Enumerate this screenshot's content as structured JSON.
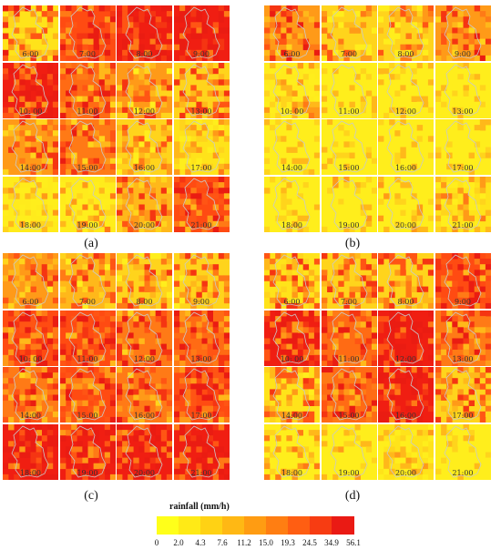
{
  "panels": [
    {
      "label": "(a)",
      "tiles": [
        {
          "time": "6:00",
          "base": "#ffe31a",
          "hot": 0.55,
          "seed": 3
        },
        {
          "time": "7:00",
          "base": "#ff4b12",
          "hot": 0.75,
          "seed": 5
        },
        {
          "time": "8:00",
          "base": "#f01e12",
          "hot": 0.9,
          "seed": 7
        },
        {
          "time": "9:00",
          "base": "#f01e12",
          "hot": 0.92,
          "seed": 11
        },
        {
          "time": "10: 00",
          "base": "#f01e12",
          "hot": 0.8,
          "seed": 13
        },
        {
          "time": "11:00",
          "base": "#ff6b14",
          "hot": 0.6,
          "seed": 17
        },
        {
          "time": "12:00",
          "base": "#ff9a18",
          "hot": 0.45,
          "seed": 19
        },
        {
          "time": "13:00",
          "base": "#ffd41c",
          "hot": 0.55,
          "seed": 23
        },
        {
          "time": "14:00",
          "base": "#ff9a18",
          "hot": 0.5,
          "seed": 29
        },
        {
          "time": "15:00",
          "base": "#ff7a16",
          "hot": 0.55,
          "seed": 31
        },
        {
          "time": "16:00",
          "base": "#ffd41c",
          "hot": 0.35,
          "seed": 37
        },
        {
          "time": "17:00",
          "base": "#ffe31a",
          "hot": 0.2,
          "seed": 41
        },
        {
          "time": "18:00",
          "base": "#ffeb1c",
          "hot": 0.12,
          "seed": 43
        },
        {
          "time": "19:00",
          "base": "#ffeb1c",
          "hot": 0.15,
          "seed": 47
        },
        {
          "time": "20:00",
          "base": "#ffb81a",
          "hot": 0.5,
          "seed": 53
        },
        {
          "time": "21:00",
          "base": "#ff4b12",
          "hot": 0.7,
          "seed": 59
        }
      ]
    },
    {
      "label": "(b)",
      "tiles": [
        {
          "time": "6:00",
          "base": "#ff9a18",
          "hot": 0.55,
          "seed": 61
        },
        {
          "time": "7:00",
          "base": "#ffd41c",
          "hot": 0.35,
          "seed": 67
        },
        {
          "time": "8:00",
          "base": "#ffd41c",
          "hot": 0.3,
          "seed": 71
        },
        {
          "time": "9:00",
          "base": "#ff9a18",
          "hot": 0.55,
          "seed": 73
        },
        {
          "time": "10: 00",
          "base": "#ffeb1c",
          "hot": 0.15,
          "seed": 79
        },
        {
          "time": "11:00",
          "base": "#ffee1c",
          "hot": 0.0,
          "seed": 83
        },
        {
          "time": "12:00",
          "base": "#ffee1c",
          "hot": 0.0,
          "seed": 89
        },
        {
          "time": "13:00",
          "base": "#ffee1c",
          "hot": 0.0,
          "seed": 97
        },
        {
          "time": "14:00",
          "base": "#ffee1c",
          "hot": 0.0,
          "seed": 101
        },
        {
          "time": "15:00",
          "base": "#ffee1c",
          "hot": 0.0,
          "seed": 103
        },
        {
          "time": "16:00",
          "base": "#ffee1c",
          "hot": 0.0,
          "seed": 107
        },
        {
          "time": "17:00",
          "base": "#ffee1c",
          "hot": 0.0,
          "seed": 109
        },
        {
          "time": "18:00",
          "base": "#ffee1c",
          "hot": 0.0,
          "seed": 113
        },
        {
          "time": "19:00",
          "base": "#ffee1c",
          "hot": 0.03,
          "seed": 127
        },
        {
          "time": "20:00",
          "base": "#ffee1c",
          "hot": 0.12,
          "seed": 131
        },
        {
          "time": "21:00",
          "base": "#ffe31a",
          "hot": 0.25,
          "seed": 137
        }
      ]
    },
    {
      "label": "(c)",
      "tiles": [
        {
          "time": "6:00",
          "base": "#ff9a18",
          "hot": 0.45,
          "seed": 139
        },
        {
          "time": "7:00",
          "base": "#ffb81a",
          "hot": 0.45,
          "seed": 149
        },
        {
          "time": "8:00",
          "base": "#ffd41c",
          "hot": 0.45,
          "seed": 151
        },
        {
          "time": "9:00",
          "base": "#ffd41c",
          "hot": 0.45,
          "seed": 157
        },
        {
          "time": "10: 00",
          "base": "#ff4b12",
          "hot": 0.65,
          "seed": 163
        },
        {
          "time": "11:00",
          "base": "#ff4b12",
          "hot": 0.7,
          "seed": 167
        },
        {
          "time": "12:00",
          "base": "#ff7a16",
          "hot": 0.6,
          "seed": 173
        },
        {
          "time": "13:00",
          "base": "#ff6b14",
          "hot": 0.65,
          "seed": 179
        },
        {
          "time": "14:00",
          "base": "#ff7a16",
          "hot": 0.6,
          "seed": 181
        },
        {
          "time": "15:00",
          "base": "#ff4b12",
          "hot": 0.65,
          "seed": 191
        },
        {
          "time": "16:00",
          "base": "#ff7a16",
          "hot": 0.6,
          "seed": 193
        },
        {
          "time": "17:00",
          "base": "#ff4b12",
          "hot": 0.7,
          "seed": 197
        },
        {
          "time": "18:00",
          "base": "#f01e12",
          "hot": 0.75,
          "seed": 199
        },
        {
          "time": "19:00",
          "base": "#f01e12",
          "hot": 0.75,
          "seed": 211
        },
        {
          "time": "20:00",
          "base": "#f01e12",
          "hot": 0.85,
          "seed": 223
        },
        {
          "time": "21:00",
          "base": "#f01e12",
          "hot": 0.85,
          "seed": 227
        }
      ]
    },
    {
      "label": "(d)",
      "tiles": [
        {
          "time": "6:00",
          "base": "#ffe31a",
          "hot": 0.5,
          "seed": 229
        },
        {
          "time": "7:00",
          "base": "#ffd41c",
          "hot": 0.5,
          "seed": 233
        },
        {
          "time": "8:00",
          "base": "#ffd41c",
          "hot": 0.5,
          "seed": 239
        },
        {
          "time": "9:00",
          "base": "#ff4b12",
          "hot": 0.7,
          "seed": 241
        },
        {
          "time": "10: 00",
          "base": "#f01e12",
          "hot": 0.75,
          "seed": 251
        },
        {
          "time": "11:00",
          "base": "#ff6b14",
          "hot": 0.65,
          "seed": 257
        },
        {
          "time": "12:00",
          "base": "#f01e12",
          "hot": 0.95,
          "seed": 263
        },
        {
          "time": "13:00",
          "base": "#ff7a16",
          "hot": 0.6,
          "seed": 269
        },
        {
          "time": "14:00",
          "base": "#ffe31a",
          "hot": 0.45,
          "seed": 271
        },
        {
          "time": "15:00",
          "base": "#ff6b14",
          "hot": 0.65,
          "seed": 277
        },
        {
          "time": "16:00",
          "base": "#f01e12",
          "hot": 0.85,
          "seed": 281
        },
        {
          "time": "17:00",
          "base": "#ffd41c",
          "hot": 0.5,
          "seed": 283
        },
        {
          "time": "18:00",
          "base": "#ffee1c",
          "hot": 0.25,
          "seed": 293
        },
        {
          "time": "19:00",
          "base": "#ffee1c",
          "hot": 0.03,
          "seed": 307
        },
        {
          "time": "20:00",
          "base": "#ffe31a",
          "hot": 0.12,
          "seed": 311
        },
        {
          "time": "21:00",
          "base": "#ffee1c",
          "hot": 0.0,
          "seed": 313
        }
      ]
    }
  ],
  "legend": {
    "title": "rainfall  (mm/h)",
    "ticks": [
      "0",
      "2.0",
      "4.3",
      "7.6",
      "11.2",
      "15.0",
      "19.3",
      "24.5",
      "34.9",
      "56.1"
    ],
    "colors": [
      "#ffff1a",
      "#ffea16",
      "#ffd214",
      "#ffb814",
      "#ff9c12",
      "#ff7e12",
      "#ff5e12",
      "#f73c12",
      "#ea1a14"
    ]
  }
}
